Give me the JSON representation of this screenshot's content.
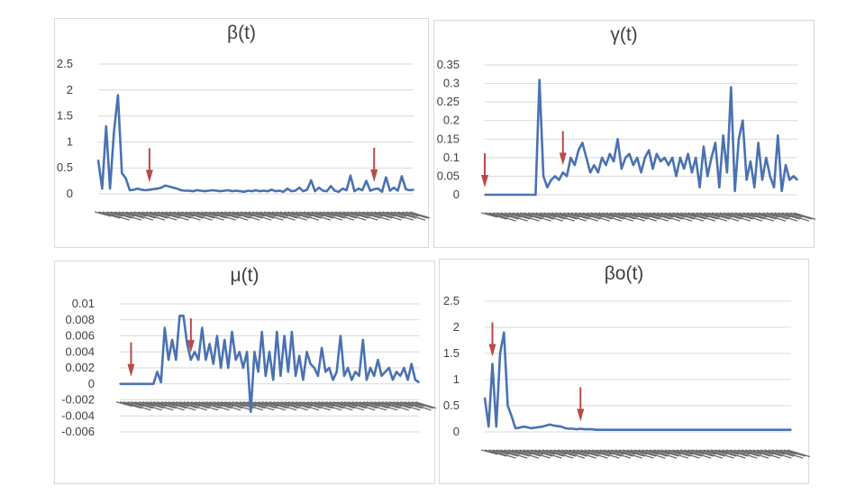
{
  "chart_data": [
    {
      "type": "line",
      "title": "β(t)",
      "yticks": [
        "2.5",
        "2",
        "1.5",
        "1",
        "0.5",
        "0"
      ],
      "ylim": [
        0,
        2.5
      ],
      "series_color": "#4a72b2",
      "marker_color": "#b94a48",
      "arrows_at_x": [
        13,
        70
      ],
      "values": [
        0.65,
        0.1,
        1.3,
        0.1,
        1.2,
        1.9,
        0.4,
        0.3,
        0.07,
        0.08,
        0.1,
        0.08,
        0.07,
        0.08,
        0.09,
        0.1,
        0.12,
        0.16,
        0.14,
        0.12,
        0.1,
        0.07,
        0.06,
        0.06,
        0.05,
        0.07,
        0.06,
        0.05,
        0.06,
        0.07,
        0.06,
        0.05,
        0.06,
        0.07,
        0.05,
        0.06,
        0.05,
        0.04,
        0.06,
        0.05,
        0.07,
        0.05,
        0.06,
        0.05,
        0.08,
        0.05,
        0.06,
        0.04,
        0.1,
        0.05,
        0.06,
        0.12,
        0.05,
        0.08,
        0.26,
        0.05,
        0.12,
        0.06,
        0.05,
        0.15,
        0.06,
        0.04,
        0.1,
        0.07,
        0.35,
        0.05,
        0.1,
        0.07,
        0.25,
        0.06,
        0.09,
        0.1,
        0.04,
        0.32,
        0.06,
        0.12,
        0.06,
        0.34,
        0.09,
        0.07,
        0.08
      ]
    },
    {
      "type": "line",
      "title": "γ(t)",
      "yticks": [
        "0.35",
        "0.3",
        "0.25",
        "0.2",
        "0.15",
        "0.1",
        "0.05",
        "0"
      ],
      "ylim": [
        0,
        0.35
      ],
      "series_color": "#4a72b2",
      "marker_color": "#b94a48",
      "arrows_at_x": [
        0,
        20
      ],
      "values": [
        0,
        0,
        0,
        0,
        0,
        0,
        0,
        0,
        0,
        0,
        0,
        0,
        0,
        0,
        0.31,
        0.05,
        0.02,
        0.04,
        0.05,
        0.04,
        0.06,
        0.05,
        0.1,
        0.08,
        0.12,
        0.14,
        0.1,
        0.06,
        0.08,
        0.06,
        0.1,
        0.08,
        0.11,
        0.09,
        0.15,
        0.07,
        0.1,
        0.11,
        0.08,
        0.1,
        0.06,
        0.1,
        0.12,
        0.07,
        0.11,
        0.09,
        0.1,
        0.08,
        0.1,
        0.05,
        0.1,
        0.07,
        0.11,
        0.06,
        0.1,
        0.02,
        0.13,
        0.05,
        0.1,
        0.14,
        0.02,
        0.16,
        0.06,
        0.29,
        0.01,
        0.15,
        0.2,
        0.04,
        0.09,
        0.02,
        0.14,
        0.04,
        0.1,
        0.05,
        0.02,
        0.16,
        0.01,
        0.08,
        0.04,
        0.05,
        0.04
      ]
    },
    {
      "type": "line",
      "title": "μ(t)",
      "yticks": [
        "0.01",
        "0.008",
        "0.006",
        "0.004",
        "0.002",
        "0",
        "-0.002",
        "-0.004",
        "-0.006"
      ],
      "ylim": [
        -0.006,
        0.01
      ],
      "series_color": "#4a72b2",
      "marker_color": "#b94a48",
      "arrows_at_x": [
        3,
        19
      ],
      "values": [
        0,
        0,
        0,
        0,
        0,
        0,
        0,
        0,
        0,
        0,
        0.0015,
        0.0002,
        0.007,
        0.003,
        0.0055,
        0.003,
        0.0085,
        0.0085,
        0.005,
        0.003,
        0.004,
        0.003,
        0.007,
        0.003,
        0.005,
        0.0025,
        0.006,
        0.002,
        0.0055,
        0.002,
        0.0065,
        0.003,
        0.004,
        0.002,
        0.004,
        -0.0035,
        0.004,
        0.0015,
        0.0065,
        0.001,
        0.004,
        0.0005,
        0.0065,
        0.001,
        0.006,
        0.0015,
        0.0065,
        0.001,
        0.0035,
        0.0005,
        0.004,
        0.0025,
        0.002,
        0.001,
        0.0045,
        0.0015,
        0.002,
        0.0005,
        0.0015,
        0.006,
        0.001,
        0.002,
        0.0005,
        0.0015,
        0.001,
        0.0055,
        0.0005,
        0.002,
        0.001,
        0.003,
        0.001,
        0.0015,
        0.002,
        0.0005,
        0.0015,
        0.001,
        0.002,
        0.0005,
        0.0025,
        0.0005,
        0.0002
      ]
    },
    {
      "type": "line",
      "title": "βo(t)",
      "yticks": [
        "2.5",
        "2",
        "1.5",
        "1",
        "0.5",
        "0"
      ],
      "ylim": [
        0,
        2.5
      ],
      "series_color": "#4a72b2",
      "marker_color": "#b94a48",
      "arrows_at_x": [
        2,
        25
      ],
      "values": [
        0.65,
        0.1,
        1.3,
        0.1,
        1.5,
        1.9,
        0.5,
        0.3,
        0.07,
        0.08,
        0.1,
        0.09,
        0.07,
        0.08,
        0.09,
        0.1,
        0.12,
        0.14,
        0.12,
        0.11,
        0.1,
        0.07,
        0.06,
        0.06,
        0.05,
        0.06,
        0.05,
        0.05,
        0.05,
        0.04,
        0.04,
        0.04,
        0.04,
        0.04,
        0.04,
        0.04,
        0.04,
        0.04,
        0.04,
        0.04,
        0.04,
        0.04,
        0.04,
        0.04,
        0.04,
        0.04,
        0.04,
        0.04,
        0.04,
        0.04,
        0.04,
        0.04,
        0.04,
        0.04,
        0.04,
        0.04,
        0.04,
        0.04,
        0.04,
        0.04,
        0.04,
        0.04,
        0.04,
        0.04,
        0.04,
        0.04,
        0.04,
        0.04,
        0.04,
        0.04,
        0.04,
        0.04,
        0.04,
        0.04,
        0.04,
        0.04,
        0.04,
        0.04,
        0.04,
        0.04,
        0.04
      ]
    }
  ]
}
